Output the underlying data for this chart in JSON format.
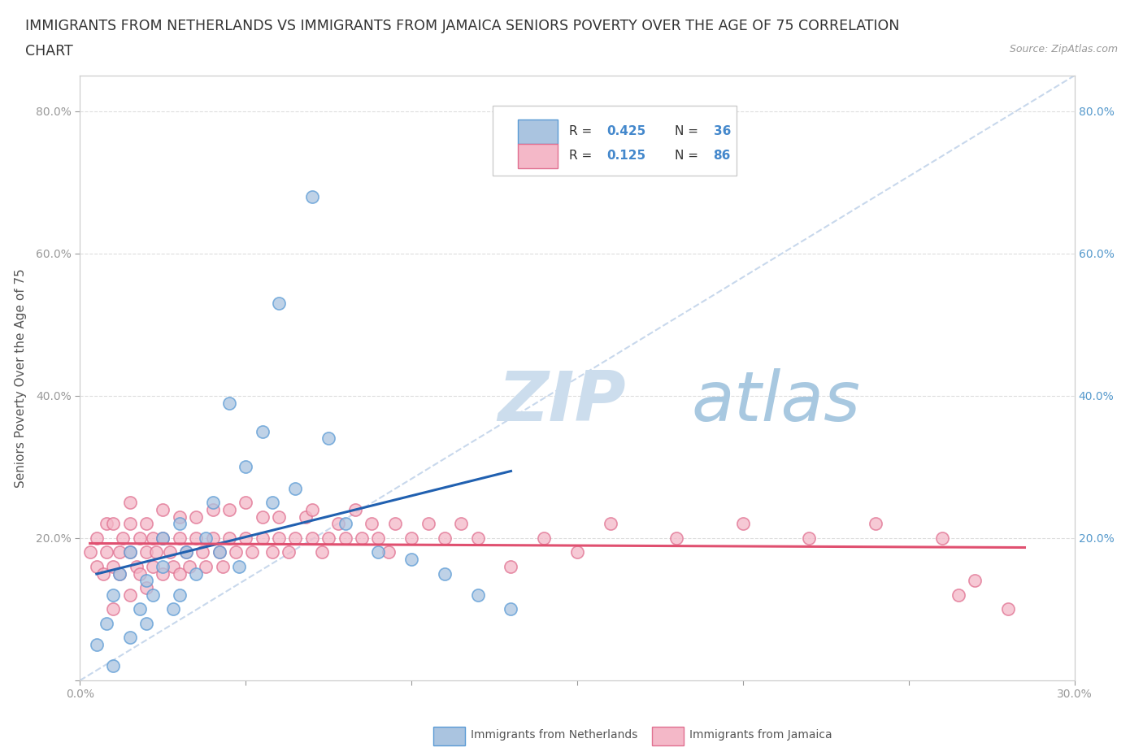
{
  "title_line1": "IMMIGRANTS FROM NETHERLANDS VS IMMIGRANTS FROM JAMAICA SENIORS POVERTY OVER THE AGE OF 75 CORRELATION",
  "title_line2": "CHART",
  "source_text": "Source: ZipAtlas.com",
  "ylabel": "Seniors Poverty Over the Age of 75",
  "xlim": [
    0.0,
    0.3
  ],
  "ylim": [
    0.0,
    0.85
  ],
  "netherlands_color": "#aac4e0",
  "netherlands_edge": "#5b9bd5",
  "jamaica_color": "#f4b8c8",
  "jamaica_edge": "#e07090",
  "netherlands_line_color": "#2060b0",
  "jamaica_line_color": "#e05070",
  "diag_line_color": "#c8d8ec",
  "R_netherlands": 0.425,
  "N_netherlands": 36,
  "R_jamaica": 0.125,
  "N_jamaica": 86,
  "legend_box_color_netherlands": "#aac4e0",
  "legend_box_color_jamaica": "#f4b8c8",
  "watermark_zip_color": "#ccdded",
  "watermark_atlas_color": "#a8c8e0",
  "background_color": "#ffffff",
  "grid_color": "#dddddd",
  "title_fontsize": 12.5,
  "axis_label_fontsize": 11,
  "tick_fontsize": 10,
  "nl_x": [
    0.005,
    0.008,
    0.01,
    0.01,
    0.012,
    0.015,
    0.015,
    0.018,
    0.02,
    0.02,
    0.022,
    0.025,
    0.025,
    0.028,
    0.03,
    0.03,
    0.032,
    0.035,
    0.038,
    0.04,
    0.042,
    0.045,
    0.048,
    0.05,
    0.055,
    0.058,
    0.06,
    0.065,
    0.07,
    0.075,
    0.08,
    0.09,
    0.1,
    0.11,
    0.12,
    0.13
  ],
  "nl_y": [
    0.05,
    0.08,
    0.02,
    0.12,
    0.15,
    0.06,
    0.18,
    0.1,
    0.14,
    0.08,
    0.12,
    0.2,
    0.16,
    0.1,
    0.22,
    0.12,
    0.18,
    0.15,
    0.2,
    0.25,
    0.18,
    0.39,
    0.16,
    0.3,
    0.35,
    0.25,
    0.53,
    0.27,
    0.68,
    0.34,
    0.22,
    0.18,
    0.17,
    0.15,
    0.12,
    0.1
  ],
  "jm_x": [
    0.003,
    0.005,
    0.005,
    0.007,
    0.008,
    0.008,
    0.01,
    0.01,
    0.01,
    0.012,
    0.012,
    0.013,
    0.015,
    0.015,
    0.015,
    0.015,
    0.017,
    0.018,
    0.018,
    0.02,
    0.02,
    0.02,
    0.022,
    0.022,
    0.023,
    0.025,
    0.025,
    0.025,
    0.027,
    0.028,
    0.03,
    0.03,
    0.03,
    0.032,
    0.033,
    0.035,
    0.035,
    0.037,
    0.038,
    0.04,
    0.04,
    0.042,
    0.043,
    0.045,
    0.045,
    0.047,
    0.05,
    0.05,
    0.052,
    0.055,
    0.055,
    0.058,
    0.06,
    0.06,
    0.063,
    0.065,
    0.068,
    0.07,
    0.07,
    0.073,
    0.075,
    0.078,
    0.08,
    0.083,
    0.085,
    0.088,
    0.09,
    0.093,
    0.095,
    0.1,
    0.105,
    0.11,
    0.115,
    0.12,
    0.13,
    0.14,
    0.15,
    0.16,
    0.18,
    0.2,
    0.22,
    0.24,
    0.26,
    0.265,
    0.27,
    0.28
  ],
  "jm_y": [
    0.18,
    0.16,
    0.2,
    0.15,
    0.18,
    0.22,
    0.1,
    0.16,
    0.22,
    0.18,
    0.15,
    0.2,
    0.12,
    0.18,
    0.22,
    0.25,
    0.16,
    0.2,
    0.15,
    0.13,
    0.18,
    0.22,
    0.16,
    0.2,
    0.18,
    0.15,
    0.2,
    0.24,
    0.18,
    0.16,
    0.15,
    0.2,
    0.23,
    0.18,
    0.16,
    0.2,
    0.23,
    0.18,
    0.16,
    0.2,
    0.24,
    0.18,
    0.16,
    0.2,
    0.24,
    0.18,
    0.2,
    0.25,
    0.18,
    0.2,
    0.23,
    0.18,
    0.2,
    0.23,
    0.18,
    0.2,
    0.23,
    0.2,
    0.24,
    0.18,
    0.2,
    0.22,
    0.2,
    0.24,
    0.2,
    0.22,
    0.2,
    0.18,
    0.22,
    0.2,
    0.22,
    0.2,
    0.22,
    0.2,
    0.16,
    0.2,
    0.18,
    0.22,
    0.2,
    0.22,
    0.2,
    0.22,
    0.2,
    0.12,
    0.14,
    0.1
  ]
}
